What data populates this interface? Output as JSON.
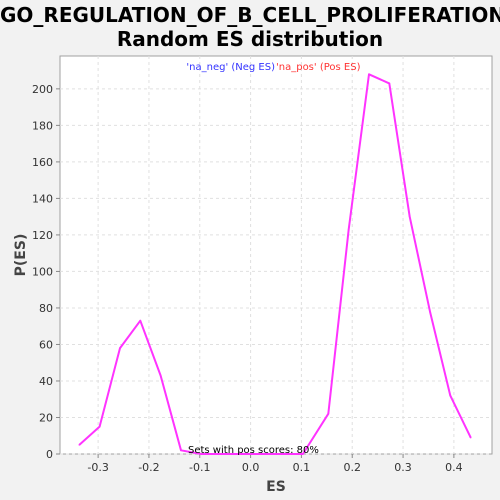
{
  "chart_data": {
    "type": "line",
    "title": "GO_REGULATION_OF_B_CELL_PROLIFERATION:",
    "subtitle": "Random ES distribution",
    "xlabel": "ES",
    "ylabel": "P(ES)",
    "xlim": [
      -0.375,
      0.475
    ],
    "ylim": [
      0,
      218
    ],
    "x_ticks": [
      "-0.3",
      "-0.2",
      "-0.1",
      "0.0",
      "0.1",
      "0.2",
      "0.3",
      "0.4"
    ],
    "y_ticks": [
      "0",
      "20",
      "40",
      "60",
      "80",
      "100",
      "120",
      "140",
      "160",
      "180",
      "200"
    ],
    "grid": true,
    "legend": [
      {
        "label": "'na_neg' (Neg ES)",
        "color": "#3333ff"
      },
      {
        "label": "'na_pos' (Pos ES)",
        "color": "#ff3333"
      }
    ],
    "annotation": "Sets with pos scores: 80%",
    "series": [
      {
        "color": "#ff33ff",
        "x": [
          -0.337,
          -0.297,
          -0.257,
          -0.217,
          -0.177,
          -0.137,
          -0.097,
          -0.057,
          -0.017,
          0.023,
          0.063,
          0.103,
          0.153,
          0.193,
          0.233,
          0.273,
          0.313,
          0.353,
          0.393,
          0.433
        ],
        "y": [
          5,
          15,
          58,
          73,
          43,
          2,
          0,
          0,
          0,
          0,
          0,
          0,
          22,
          123,
          208,
          203,
          130,
          78,
          32,
          9
        ]
      }
    ]
  }
}
